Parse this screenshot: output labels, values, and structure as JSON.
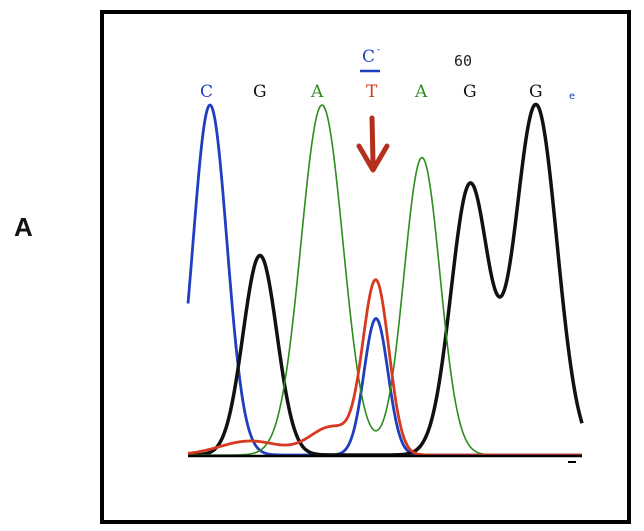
{
  "panel_label": "A",
  "colors": {
    "A": "#2e8b1e",
    "C": "#1f3fbf",
    "G": "#111111",
    "T": "#d63a20",
    "arrow": "#b5301c"
  },
  "chart_data": {
    "type": "line",
    "title": "",
    "xlabel": "",
    "ylabel": "",
    "grid": false,
    "position_label": "60",
    "mutation_call": "C",
    "base_calls": [
      "C",
      "G",
      "A",
      "T",
      "A",
      "G",
      "G"
    ],
    "x": [
      1,
      2,
      3,
      4,
      5,
      6,
      7
    ],
    "ylim": [
      0,
      100
    ],
    "series": [
      {
        "values": [
          100,
          0,
          0,
          0,
          0,
          0,
          0
        ]
      },
      {
        "values": [
          0,
          57,
          0,
          0,
          0,
          77,
          100
        ]
      },
      {
        "values": [
          0,
          0,
          100,
          0,
          85,
          0,
          0
        ]
      },
      {
        "values": [
          0,
          0,
          0,
          49,
          0,
          0,
          0
        ]
      }
    ]
  }
}
